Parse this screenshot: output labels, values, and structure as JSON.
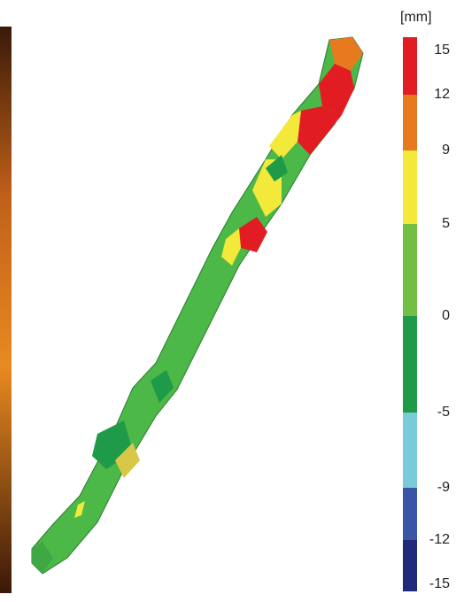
{
  "legend": {
    "unit": "[mm]",
    "ticks": [
      15,
      12,
      9,
      5,
      0,
      -5,
      -9,
      -12,
      -15
    ],
    "colors": [
      "#e21c23",
      "#e77a1f",
      "#f2e93a",
      "#72bf44",
      "#1f9a48",
      "#78cbd9",
      "#3a55a8",
      "#1f2a7a"
    ]
  }
}
